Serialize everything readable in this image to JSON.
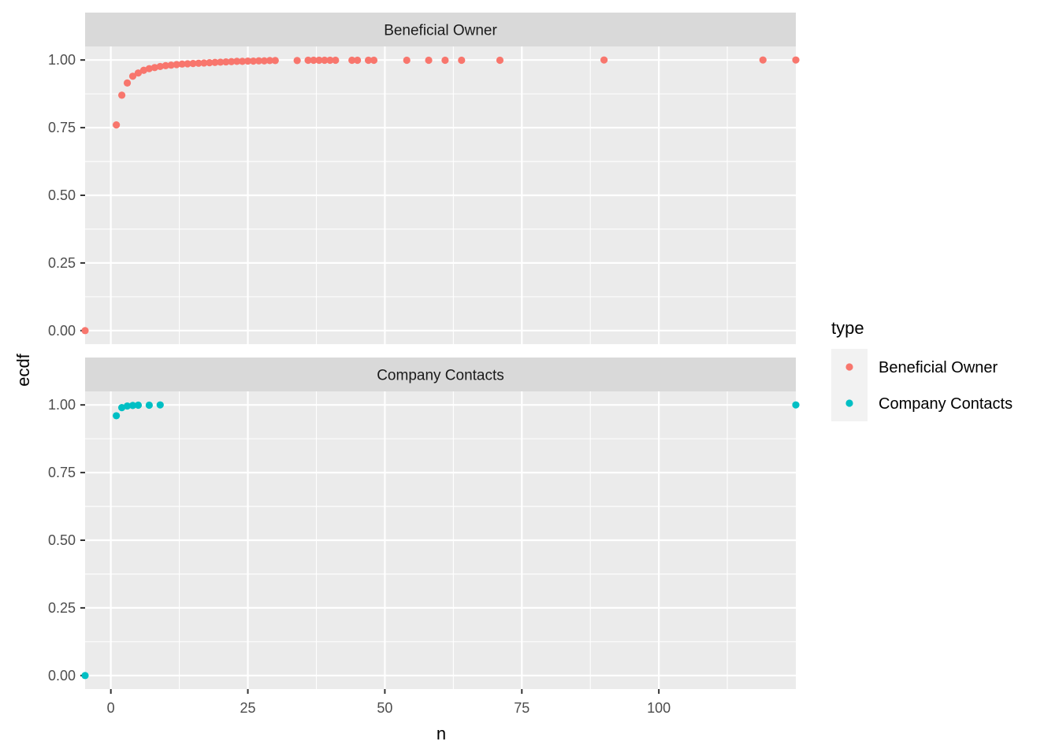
{
  "chart_data": {
    "type": "scatter",
    "xlabel": "n",
    "ylabel": "ecdf",
    "xlim": [
      -4.7,
      125
    ],
    "ylim": [
      -0.05,
      1.05
    ],
    "x_ticks": [
      0,
      25,
      50,
      75,
      100
    ],
    "y_ticks": [
      0,
      0.25,
      0.5,
      0.75,
      1.0
    ],
    "y_tick_labels": [
      "0.00",
      "0.25",
      "0.50",
      "0.75",
      "1.00"
    ],
    "grid": true,
    "facet_by": "type",
    "legend": {
      "title": "type",
      "position": "right",
      "entries": [
        {
          "label": "Beneficial Owner",
          "color": "#F8766D"
        },
        {
          "label": "Company Contacts",
          "color": "#00BFC4"
        }
      ]
    },
    "series": [
      {
        "name": "Beneficial Owner",
        "color": "#F8766D",
        "points": [
          [
            -4.7,
            0.0
          ],
          [
            1,
            0.76
          ],
          [
            2,
            0.87
          ],
          [
            3,
            0.915
          ],
          [
            4,
            0.94
          ],
          [
            5,
            0.952
          ],
          [
            6,
            0.962
          ],
          [
            7,
            0.968
          ],
          [
            8,
            0.972
          ],
          [
            9,
            0.976
          ],
          [
            10,
            0.979
          ],
          [
            11,
            0.981
          ],
          [
            12,
            0.983
          ],
          [
            13,
            0.985
          ],
          [
            14,
            0.986
          ],
          [
            15,
            0.987
          ],
          [
            16,
            0.988
          ],
          [
            17,
            0.989
          ],
          [
            18,
            0.99
          ],
          [
            19,
            0.991
          ],
          [
            20,
            0.992
          ],
          [
            21,
            0.993
          ],
          [
            22,
            0.994
          ],
          [
            23,
            0.995
          ],
          [
            24,
            0.995
          ],
          [
            25,
            0.996
          ],
          [
            26,
            0.996
          ],
          [
            27,
            0.997
          ],
          [
            28,
            0.997
          ],
          [
            29,
            0.998
          ],
          [
            30,
            0.998
          ],
          [
            34,
            0.998
          ],
          [
            36,
            0.999
          ],
          [
            37,
            0.999
          ],
          [
            38,
            0.999
          ],
          [
            39,
            0.999
          ],
          [
            40,
            0.999
          ],
          [
            41,
            0.999
          ],
          [
            44,
            0.999
          ],
          [
            45,
            0.999
          ],
          [
            47,
            0.999
          ],
          [
            48,
            0.999
          ],
          [
            54,
            0.999
          ],
          [
            58,
            0.999
          ],
          [
            61,
            0.999
          ],
          [
            64,
            0.999
          ],
          [
            71,
            0.999
          ],
          [
            90,
            1.0
          ],
          [
            119,
            1.0
          ],
          [
            125,
            1.0
          ]
        ]
      },
      {
        "name": "Company Contacts",
        "color": "#00BFC4",
        "points": [
          [
            -4.7,
            0.0
          ],
          [
            1,
            0.96
          ],
          [
            2,
            0.99
          ],
          [
            3,
            0.996
          ],
          [
            4,
            0.998
          ],
          [
            5,
            0.999
          ],
          [
            7,
            0.999
          ],
          [
            9,
            1.0
          ],
          [
            125,
            1.0
          ]
        ]
      }
    ]
  }
}
